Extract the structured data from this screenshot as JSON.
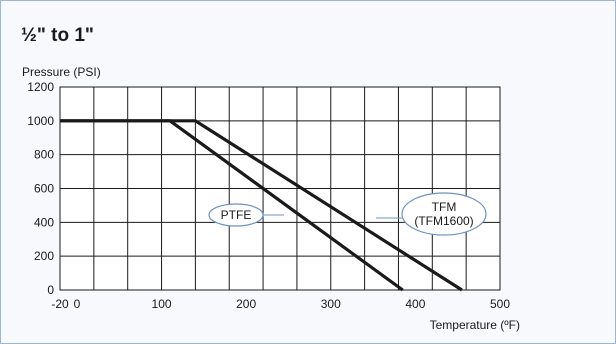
{
  "heading": "½\" to 1\"",
  "chart_data": {
    "type": "line",
    "title": "½\" to 1\"",
    "xlabel": "Temperature (ºF)",
    "ylabel": "Pressure (PSI)",
    "xlim": [
      -20,
      500
    ],
    "ylim": [
      0,
      1200
    ],
    "x_ticks": [
      -20,
      0,
      100,
      200,
      300,
      400,
      500
    ],
    "y_ticks": [
      0,
      200,
      400,
      600,
      800,
      1000,
      1200
    ],
    "grid": true,
    "series": [
      {
        "name": "PTFE",
        "x": [
          -20,
          110,
          385
        ],
        "y": [
          1000,
          1000,
          0
        ]
      },
      {
        "name": "TFM (TFM1600)",
        "x": [
          -20,
          140,
          455
        ],
        "y": [
          1000,
          1000,
          0
        ]
      }
    ],
    "annotations": [
      {
        "text": "PTFE",
        "series": "PTFE"
      },
      {
        "text": "TFM\n(TFM1600)",
        "series": "TFM (TFM1600)"
      }
    ]
  }
}
